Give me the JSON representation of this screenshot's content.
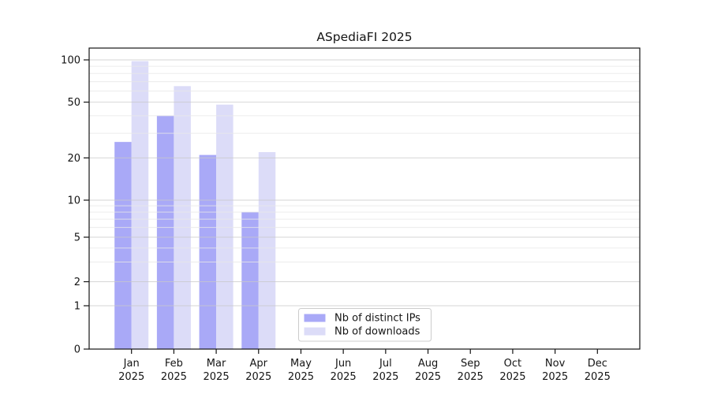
{
  "chart_data": {
    "type": "bar",
    "title": "ASpediaFI 2025",
    "categories": [
      "Jan",
      "Feb",
      "Mar",
      "Apr",
      "May",
      "Jun",
      "Jul",
      "Aug",
      "Sep",
      "Oct",
      "Nov",
      "Dec"
    ],
    "year_label": "2025",
    "series": [
      {
        "name": "Nb of distinct IPs",
        "color": "#a9a9f7",
        "values": [
          26,
          40,
          21,
          8,
          null,
          null,
          null,
          null,
          null,
          null,
          null,
          null
        ]
      },
      {
        "name": "Nb of downloads",
        "color": "#dcdcf8",
        "values": [
          98,
          65,
          48,
          22,
          null,
          null,
          null,
          null,
          null,
          null,
          null,
          null
        ]
      }
    ],
    "yticks": [
      0,
      1,
      2,
      5,
      10,
      20,
      50,
      100
    ],
    "minor_gridlines": [
      3,
      4,
      6,
      7,
      8,
      9,
      30,
      40,
      60,
      70,
      80,
      90
    ],
    "scale": "symlog",
    "ylim": [
      0,
      120
    ],
    "grid": "horizontal",
    "legend_position": "lower center",
    "colors": {
      "axis": "#141414",
      "major_grid": "#c9c9c9",
      "minor_grid": "#e8e8e8",
      "legend_border": "#cccccc",
      "background": "#ffffff"
    }
  }
}
